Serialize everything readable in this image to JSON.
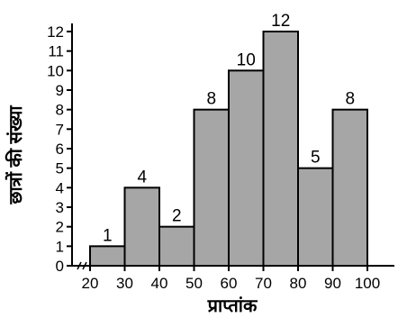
{
  "chart_data": {
    "type": "bar",
    "histogram": true,
    "title": "",
    "xlabel": "प्राप्तांक",
    "ylabel": "छात्रों की संख्या",
    "x_ticks": [
      "20",
      "30",
      "40",
      "50",
      "60",
      "70",
      "80",
      "90",
      "100"
    ],
    "bins": [
      [
        20,
        30
      ],
      [
        30,
        40
      ],
      [
        40,
        50
      ],
      [
        50,
        60
      ],
      [
        60,
        70
      ],
      [
        70,
        80
      ],
      [
        80,
        90
      ],
      [
        90,
        100
      ]
    ],
    "values": [
      1,
      4,
      2,
      8,
      10,
      12,
      5,
      8
    ],
    "data_labels": [
      "1",
      "4",
      "2",
      "8",
      "10",
      "12",
      "5",
      "8"
    ],
    "y_ticks": [
      "0",
      "1",
      "2",
      "3",
      "4",
      "5",
      "6",
      "7",
      "8",
      "9",
      "10",
      "11",
      "12"
    ],
    "ylim": [
      0,
      12
    ],
    "xlim": [
      20,
      100
    ],
    "grid": false,
    "legend": "none",
    "colors": {
      "bar_fill": "#a6a6a6",
      "bar_stroke": "#000000",
      "axis": "#000000"
    }
  }
}
